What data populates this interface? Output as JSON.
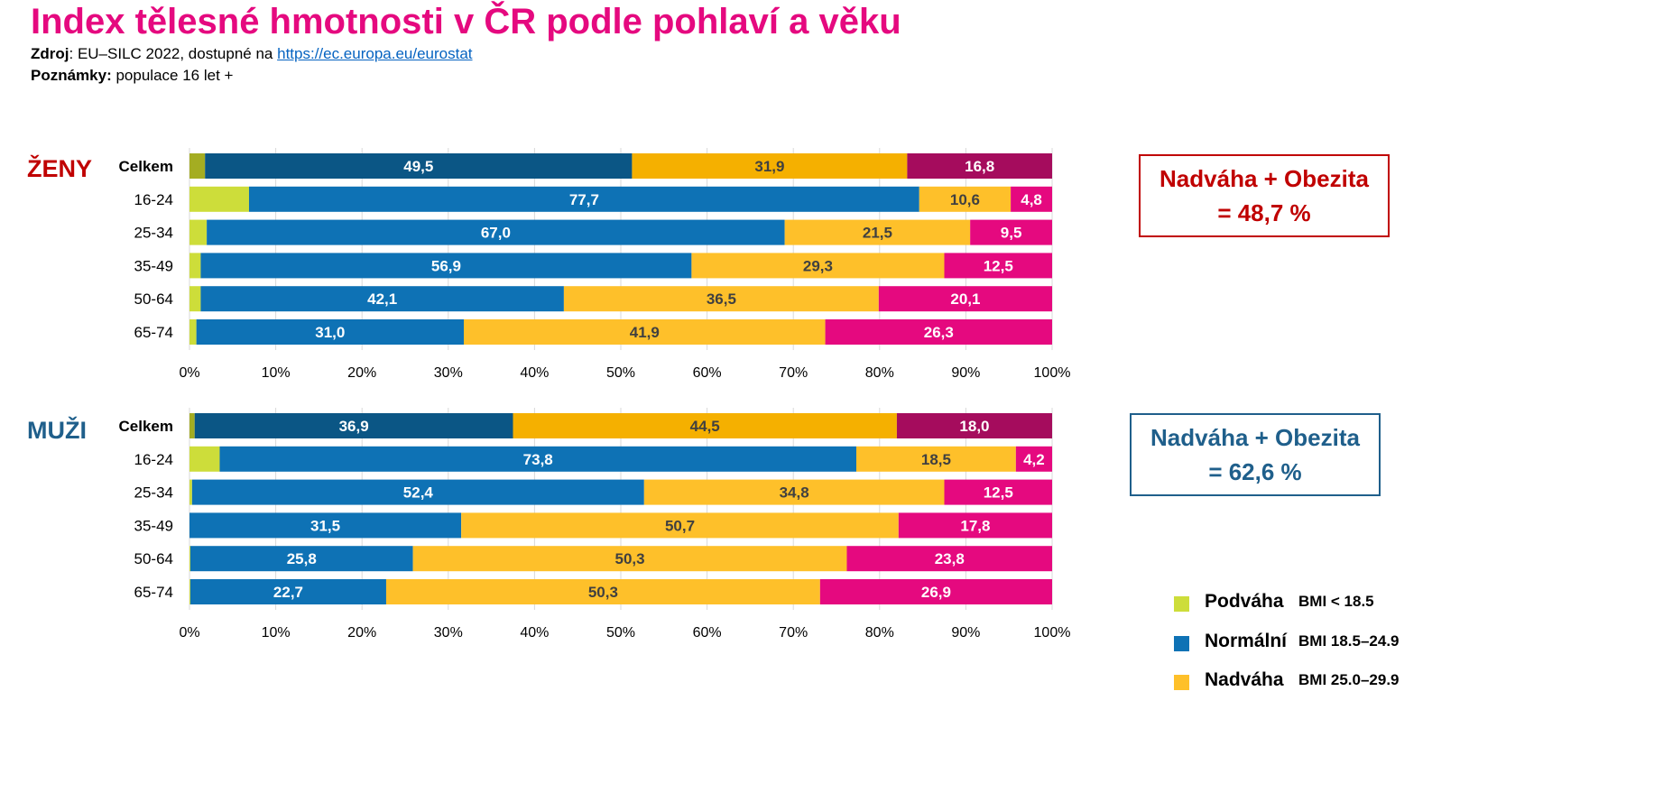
{
  "title": "Index tělesné hmotnosti v ČR podle pohlaví a věku",
  "source_label": "Zdroj",
  "source_text": ": EU–SILC 2022, dostupné na ",
  "source_link": "https://ec.europa.eu/eurostat",
  "notes_label": "Poznámky:",
  "notes_text": " populace 16 let +",
  "colors": {
    "podvaha": "#cddd3a",
    "podvaha_total": "#a4ad22",
    "normalni": "#0e72b5",
    "normalni_total": "#0b5685",
    "nadvaha": "#fec02a",
    "nadvaha_total": "#f5b000",
    "obezita": "#e5097f",
    "obezita_total": "#a50c5d",
    "women_accent": "#c00000",
    "men_accent": "#1f5f8b"
  },
  "women_box": {
    "line1": "Nadváha + Obezita",
    "line2": "= 48,7 %"
  },
  "men_box": {
    "line1": "Nadváha + Obezita",
    "line2": "= 62,6 %"
  },
  "legend": [
    {
      "name": "Podváha",
      "bmi": "BMI < 18.5",
      "key": "podvaha"
    },
    {
      "name": "Normální",
      "bmi": "BMI 18.5–24.9",
      "key": "normalni"
    },
    {
      "name": "Nadváha",
      "bmi": "BMI 25.0–29.9",
      "key": "nadvaha"
    }
  ],
  "chart_data": [
    {
      "type": "bar",
      "orientation": "horizontal",
      "stacked": "100%",
      "group_label": "ŽENY",
      "categories": [
        "Celkem",
        "16-24",
        "25-34",
        "35-49",
        "50-64",
        "65-74"
      ],
      "series": [
        {
          "key": "podvaha",
          "values": [
            1.8,
            6.9,
            2.0,
            1.3,
            1.3,
            0.8
          ],
          "labels": false
        },
        {
          "key": "normalni",
          "values": [
            49.5,
            77.7,
            67.0,
            56.9,
            42.1,
            31.0
          ]
        },
        {
          "key": "nadvaha",
          "values": [
            31.9,
            10.6,
            21.5,
            29.3,
            36.5,
            41.9
          ]
        },
        {
          "key": "obezita",
          "values": [
            16.8,
            4.8,
            9.5,
            12.5,
            20.1,
            26.3
          ]
        }
      ],
      "xlim": [
        0,
        100
      ],
      "xticks": [
        "0%",
        "10%",
        "20%",
        "30%",
        "40%",
        "50%",
        "60%",
        "70%",
        "80%",
        "90%",
        "100%"
      ],
      "grid": true
    },
    {
      "type": "bar",
      "orientation": "horizontal",
      "stacked": "100%",
      "group_label": "MUŽI",
      "categories": [
        "Celkem",
        "16-24",
        "25-34",
        "35-49",
        "50-64",
        "65-74"
      ],
      "series": [
        {
          "key": "podvaha",
          "values": [
            0.6,
            3.5,
            0.3,
            0.0,
            0.1,
            0.1
          ],
          "labels": false
        },
        {
          "key": "normalni",
          "values": [
            36.9,
            73.8,
            52.4,
            31.5,
            25.8,
            22.7
          ]
        },
        {
          "key": "nadvaha",
          "values": [
            44.5,
            18.5,
            34.8,
            50.7,
            50.3,
            50.3
          ]
        },
        {
          "key": "obezita",
          "values": [
            18.0,
            4.2,
            12.5,
            17.8,
            23.8,
            26.9
          ]
        }
      ],
      "xlim": [
        0,
        100
      ],
      "xticks": [
        "0%",
        "10%",
        "20%",
        "30%",
        "40%",
        "50%",
        "60%",
        "70%",
        "80%",
        "90%",
        "100%"
      ],
      "grid": true
    }
  ]
}
